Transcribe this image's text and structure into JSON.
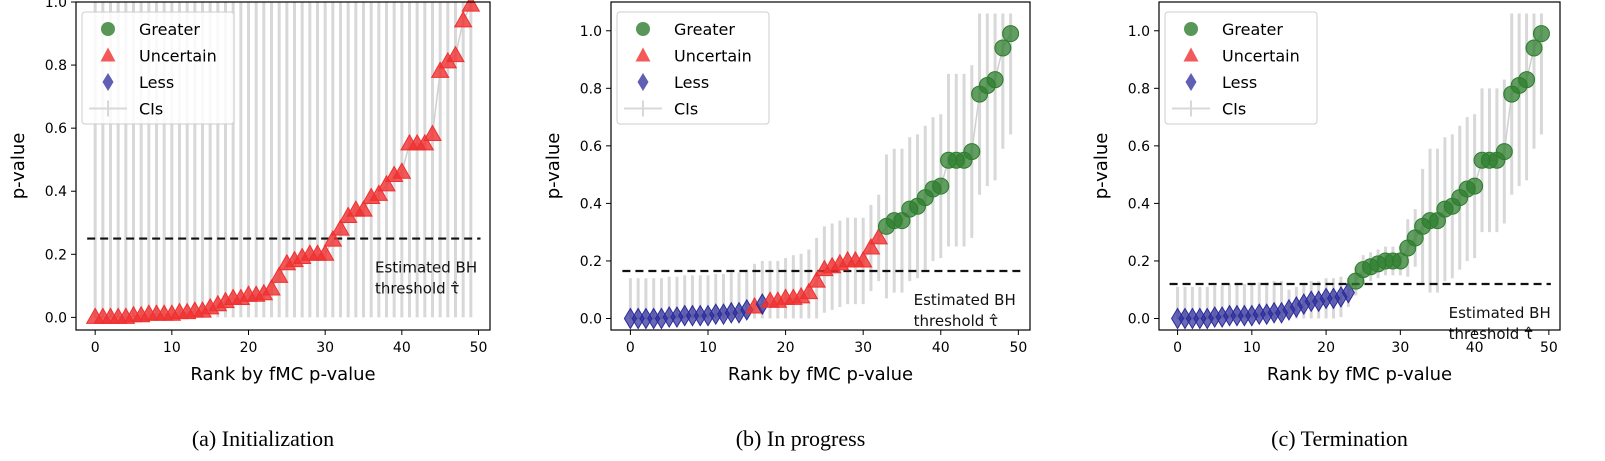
{
  "chart_data": [
    {
      "type": "scatter",
      "caption": "(a)  Initialization",
      "xlabel": "Rank by fMC p-value",
      "ylabel": "p-value",
      "xlim": [
        -2.5,
        51.5
      ],
      "ylim": [
        -0.04,
        1.0
      ],
      "xticks": [
        0,
        10,
        20,
        30,
        40,
        50
      ],
      "yticks": [
        "0.0",
        "0.2",
        "0.4",
        "0.6",
        "0.8",
        "1.0"
      ],
      "threshold": 0.25,
      "annotation": [
        "Estimated BH",
        "threshold τ̂"
      ],
      "legend": [
        "Greater",
        "Uncertain",
        "Less",
        "CIs"
      ],
      "legend_position": "top-left",
      "ci_full_range": true,
      "less_ranks": [],
      "greater_ranks": []
    },
    {
      "type": "scatter",
      "caption": "(b)  In progress",
      "xlabel": "Rank by fMC p-value",
      "ylabel": "p-value",
      "xlim": [
        -2.5,
        51.5
      ],
      "ylim": [
        -0.04,
        1.1
      ],
      "xticks": [
        0,
        10,
        20,
        30,
        40,
        50
      ],
      "yticks": [
        "0.0",
        "0.2",
        "0.4",
        "0.6",
        "0.8",
        "1.0"
      ],
      "threshold": 0.165,
      "annotation": [
        "Estimated BH",
        "threshold τ̂"
      ],
      "legend": [
        "Greater",
        "Uncertain",
        "Less",
        "CIs"
      ],
      "legend_position": "top-left",
      "ci_halfwidth": [
        0.14,
        0.14,
        0.14,
        0.14,
        0.14,
        0.14,
        0.14,
        0.14,
        0.14,
        0.14,
        0.14,
        0.14,
        0.14,
        0.14,
        0.14,
        0.14,
        0.15,
        0.15,
        0.14,
        0.14,
        0.14,
        0.15,
        0.15,
        0.15,
        0.15,
        0.15,
        0.15,
        0.15,
        0.15,
        0.15,
        0.15,
        0.15,
        0.15,
        0.25,
        0.25,
        0.25,
        0.25,
        0.25,
        0.25,
        0.25,
        0.25,
        0.3,
        0.3,
        0.3,
        0.3,
        0.35,
        0.35,
        0.35,
        0.35,
        0.35
      ],
      "less_ranks": [
        0,
        1,
        2,
        3,
        4,
        5,
        6,
        7,
        8,
        9,
        10,
        11,
        12,
        13,
        14,
        15,
        17
      ],
      "greater_ranks": [
        33,
        34,
        35,
        36,
        37,
        38,
        39,
        40,
        41,
        42,
        43,
        44,
        45,
        46,
        47,
        48,
        49
      ]
    },
    {
      "type": "scatter",
      "caption": "(c)  Termination",
      "xlabel": "Rank by fMC p-value",
      "ylabel": "p-value",
      "xlim": [
        -2.5,
        51.5
      ],
      "ylim": [
        -0.04,
        1.1
      ],
      "xticks": [
        0,
        10,
        20,
        30,
        40,
        50
      ],
      "yticks": [
        "0.0",
        "0.2",
        "0.4",
        "0.6",
        "0.8",
        "1.0"
      ],
      "threshold": 0.12,
      "annotation": [
        "Estimated BH",
        "threshold τ̂"
      ],
      "legend": [
        "Greater",
        "Uncertain",
        "Less",
        "CIs"
      ],
      "legend_position": "top-left",
      "ci_halfwidth": [
        0.11,
        0.11,
        0.11,
        0.11,
        0.11,
        0.11,
        0.11,
        0.11,
        0.11,
        0.11,
        0.11,
        0.11,
        0.11,
        0.11,
        0.11,
        0.07,
        0.07,
        0.07,
        0.07,
        0.07,
        0.07,
        0.07,
        0.07,
        0.05,
        0.05,
        0.05,
        0.05,
        0.05,
        0.05,
        0.05,
        0.05,
        0.1,
        0.1,
        0.2,
        0.25,
        0.25,
        0.25,
        0.25,
        0.25,
        0.25,
        0.25,
        0.25,
        0.25,
        0.25,
        0.25,
        0.35,
        0.35,
        0.35,
        0.35,
        0.35
      ],
      "less_ranks": [
        0,
        1,
        2,
        3,
        4,
        5,
        6,
        7,
        8,
        9,
        10,
        11,
        12,
        13,
        14,
        15,
        16,
        17,
        18,
        19,
        20,
        21,
        22,
        23
      ],
      "greater_ranks": [
        24,
        25,
        26,
        27,
        28,
        29,
        30,
        31,
        32,
        33,
        34,
        35,
        36,
        37,
        38,
        39,
        40,
        41,
        42,
        43,
        44,
        45,
        46,
        47,
        48,
        49
      ]
    }
  ],
  "p_values": [
    0,
    0,
    0,
    0,
    0,
    0.005,
    0.005,
    0.01,
    0.01,
    0.01,
    0.01,
    0.015,
    0.015,
    0.02,
    0.02,
    0.03,
    0.04,
    0.05,
    0.06,
    0.06,
    0.07,
    0.07,
    0.075,
    0.09,
    0.13,
    0.17,
    0.18,
    0.19,
    0.2,
    0.2,
    0.2,
    0.245,
    0.28,
    0.32,
    0.34,
    0.34,
    0.38,
    0.39,
    0.42,
    0.45,
    0.46,
    0.55,
    0.55,
    0.55,
    0.58,
    0.78,
    0.81,
    0.83,
    0.94,
    0.99
  ],
  "colors": {
    "greater": "#2e7d2e",
    "uncertain": "#f03030",
    "less": "#2a2a9a",
    "ci": "#d8d8d8"
  }
}
